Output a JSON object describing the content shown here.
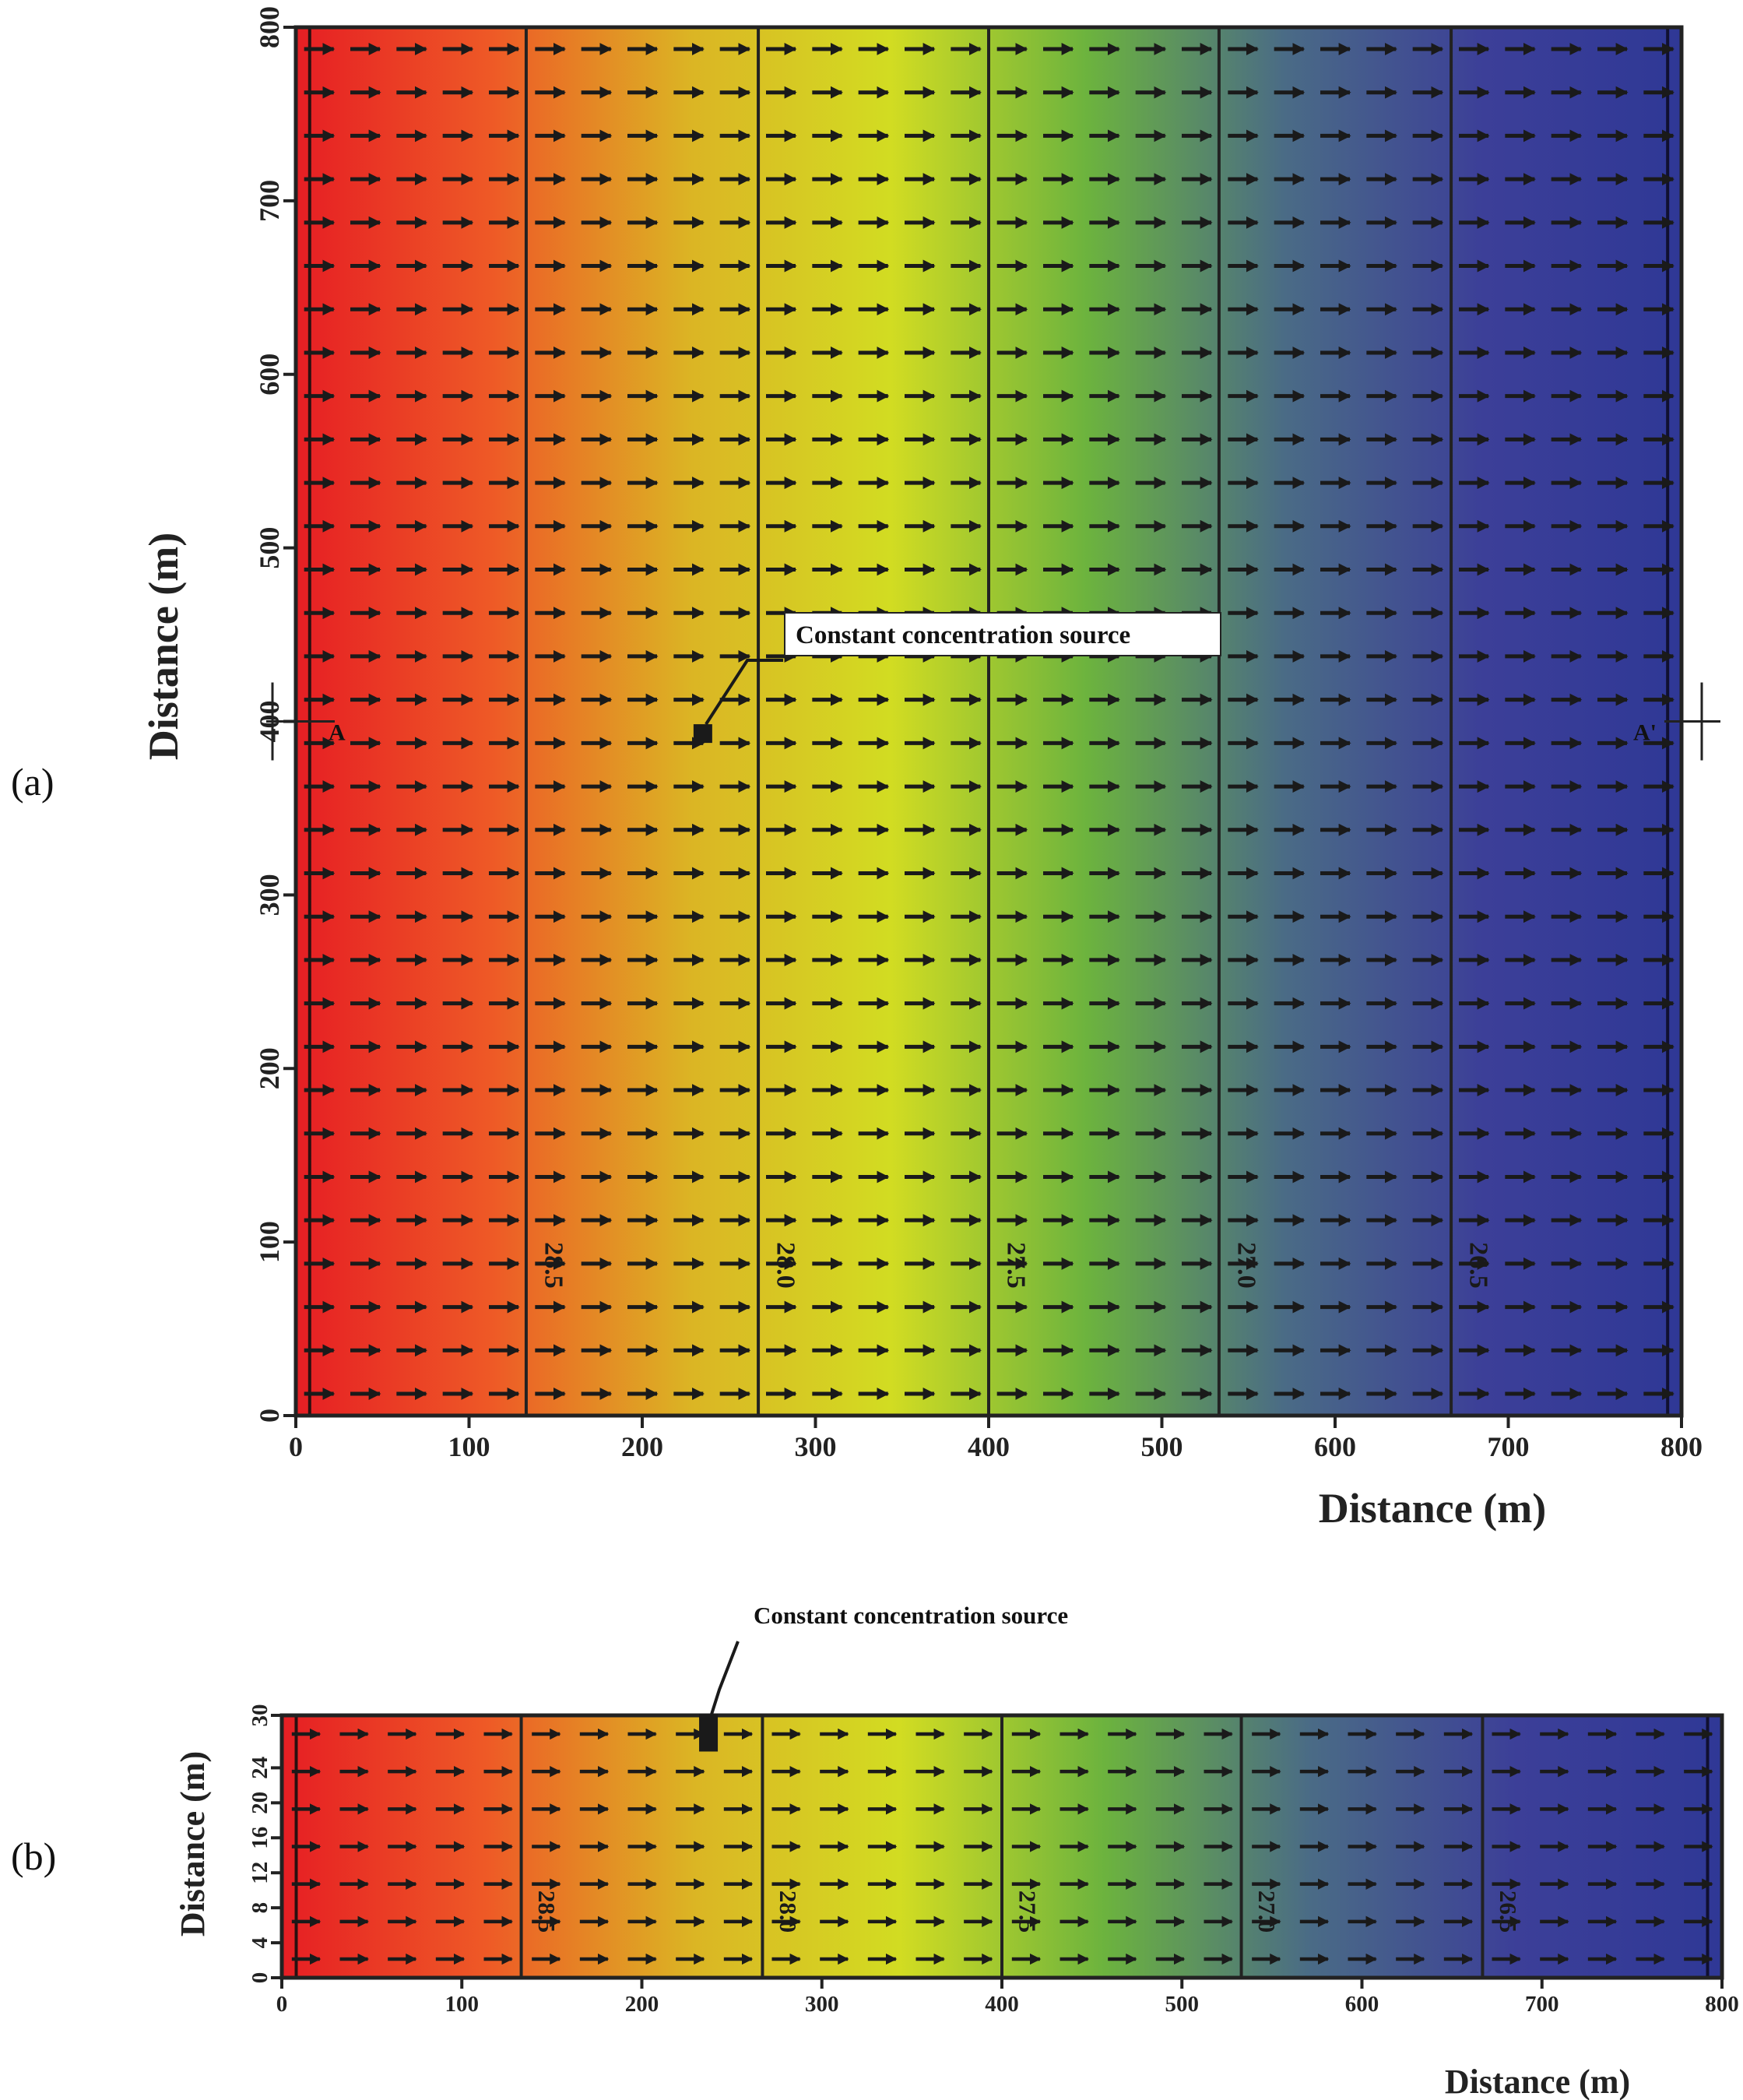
{
  "panels": [
    {
      "label": "(a)"
    },
    {
      "label": "(b)"
    }
  ],
  "chart_data": [
    {
      "type": "heatmap",
      "panel": "(a)",
      "title": "",
      "xlabel": "Distance (m)",
      "ylabel": "Distance (m)",
      "xlim": [
        0,
        800
      ],
      "ylim": [
        0,
        800
      ],
      "x_ticks": [
        0,
        100,
        200,
        300,
        400,
        500,
        600,
        700,
        800
      ],
      "y_ticks": [
        0,
        100,
        200,
        300,
        400,
        500,
        600,
        700,
        800
      ],
      "color_scale": [
        "#e61e24",
        "#ee5a26",
        "#dbb524",
        "#d2dc22",
        "#6cb33e",
        "#4a6b86",
        "#3c3f98",
        "#2f3896"
      ],
      "contours": [
        {
          "x": 133,
          "label": "28.5"
        },
        {
          "x": 267,
          "label": "28.0"
        },
        {
          "x": 400,
          "label": "27.5"
        },
        {
          "x": 533,
          "label": "27.0"
        },
        {
          "x": 667,
          "label": "26.5"
        }
      ],
      "flow_direction": "+x",
      "source": {
        "x": 235,
        "y": 393,
        "label": "Constant concentration source"
      },
      "section_line": {
        "y": 400,
        "start_label": "A",
        "end_label": "A'"
      }
    },
    {
      "type": "heatmap",
      "panel": "(b)",
      "title": "",
      "xlabel": "Distance (m)",
      "ylabel": "Distance (m)",
      "xlim": [
        0,
        800
      ],
      "ylim": [
        0,
        30
      ],
      "x_ticks": [
        0,
        100,
        200,
        300,
        400,
        500,
        600,
        700,
        800
      ],
      "y_ticks": [
        0,
        4,
        8,
        12,
        16,
        20,
        24,
        30
      ],
      "color_scale": [
        "#e61e24",
        "#ee5a26",
        "#dbb524",
        "#d2dc22",
        "#6cb33e",
        "#4a6b86",
        "#3c3f98",
        "#2f3896"
      ],
      "contours": [
        {
          "x": 133,
          "label": "28.5"
        },
        {
          "x": 267,
          "label": "28.0"
        },
        {
          "x": 400,
          "label": "27.5"
        },
        {
          "x": 533,
          "label": "27.0"
        },
        {
          "x": 667,
          "label": "26.5"
        }
      ],
      "flow_direction": "+x",
      "source": {
        "x": 237,
        "y": 28,
        "label": "Constant concentration source"
      }
    }
  ]
}
